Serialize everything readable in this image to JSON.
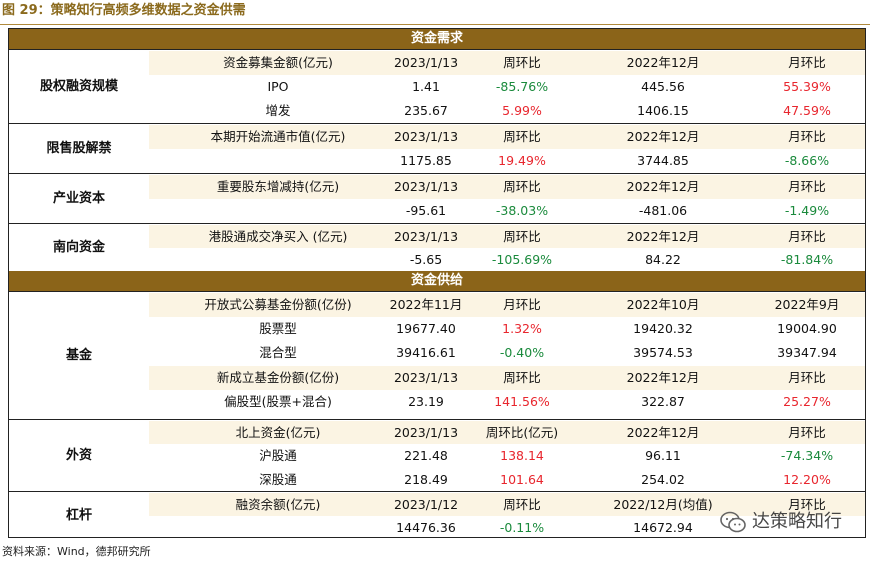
{
  "figure_title": "图 29：策略知行高频多维数据之资金供需",
  "section_demand": "资金需求",
  "section_supply": "资金供给",
  "groups": [
    {
      "label": "股权融资规模",
      "rows": [
        {
          "c": [
            "资金募集金额(亿元)",
            "2023/1/13",
            "周环比",
            "2022年12月",
            "月环比"
          ],
          "header": true
        },
        {
          "c": [
            "IPO",
            "1.41",
            "-85.76%",
            "445.56",
            "55.39%"
          ],
          "colors": [
            "",
            "",
            "green",
            "",
            "red"
          ]
        },
        {
          "c": [
            "增发",
            "235.67",
            "5.99%",
            "1406.15",
            "47.59%"
          ],
          "colors": [
            "",
            "",
            "red",
            "",
            "red"
          ]
        }
      ]
    },
    {
      "label": "限售股解禁",
      "rows": [
        {
          "c": [
            "本期开始流通市值(亿元)",
            "2023/1/13",
            "周环比",
            "2022年12月",
            "月环比"
          ],
          "header": true
        },
        {
          "c": [
            "",
            "1175.85",
            "19.49%",
            "3744.85",
            "-8.66%"
          ],
          "colors": [
            "",
            "",
            "red",
            "",
            "green"
          ]
        }
      ]
    },
    {
      "label": "产业资本",
      "rows": [
        {
          "c": [
            "重要股东增减持(亿元)",
            "2023/1/13",
            "周环比",
            "2022年12月",
            "月环比"
          ],
          "header": true
        },
        {
          "c": [
            "",
            "-95.61",
            "-38.03%",
            "-481.06",
            "-1.49%"
          ],
          "colors": [
            "",
            "",
            "green",
            "",
            "green"
          ]
        }
      ]
    },
    {
      "label": "南向资金",
      "rows": [
        {
          "c": [
            "港股通成交净买入 (亿元)",
            "2023/1/13",
            "周环比",
            "2022年12月",
            "月环比"
          ],
          "header": true
        },
        {
          "c": [
            "",
            "-5.65",
            "-105.69%",
            "84.22",
            "-81.84%"
          ],
          "colors": [
            "",
            "",
            "green",
            "",
            "green"
          ]
        }
      ]
    },
    {
      "label": "基金",
      "rows": [
        {
          "c": [
            "开放式公募基金份额(亿份)",
            "2022年11月",
            "月环比",
            "2022年10月",
            "2022年9月"
          ],
          "header": true
        },
        {
          "c": [
            "股票型",
            "19677.40",
            "1.32%",
            "19420.32",
            "19004.90"
          ],
          "colors": [
            "",
            "",
            "red",
            "",
            ""
          ]
        },
        {
          "c": [
            "混合型",
            "39416.61",
            "-0.40%",
            "39574.53",
            "39347.94"
          ],
          "colors": [
            "",
            "",
            "green",
            "",
            ""
          ]
        },
        {
          "c": [
            "新成立基金份额(亿份)",
            "2023/1/13",
            "周环比",
            "2022年12月",
            "月环比"
          ],
          "header": true
        },
        {
          "c": [
            "偏股型(股票+混合)",
            "23.19",
            "141.56%",
            "322.87",
            "25.27%"
          ],
          "colors": [
            "",
            "",
            "red",
            "",
            "red"
          ]
        }
      ]
    },
    {
      "label": "外资",
      "rows": [
        {
          "c": [
            "北上资金(亿元)",
            "2023/1/13",
            "周环比(亿元)",
            "2022年12月",
            "月环比"
          ],
          "header": true
        },
        {
          "c": [
            "沪股通",
            "221.48",
            "138.14",
            "96.11",
            "-74.34%"
          ],
          "colors": [
            "",
            "",
            "red",
            "",
            "green"
          ]
        },
        {
          "c": [
            "深股通",
            "218.49",
            "101.64",
            "254.02",
            "12.20%"
          ],
          "colors": [
            "",
            "",
            "red",
            "",
            "red"
          ]
        }
      ]
    },
    {
      "label": "杠杆",
      "rows": [
        {
          "c": [
            "融资余额(亿元)",
            "2023/1/12",
            "周环比",
            "2022/12月(均值)",
            "月环比"
          ],
          "header": true
        },
        {
          "c": [
            "",
            "14476.36",
            "-0.11%",
            "14672.94",
            ""
          ],
          "colors": [
            "",
            "",
            "green",
            "",
            ""
          ]
        }
      ]
    }
  ],
  "source": "资料来源：Wind，德邦研究所",
  "watermark": "达策略知行",
  "colors": {
    "band": "#8b6419",
    "up": "#e8262e",
    "down": "#1a8a3c"
  }
}
